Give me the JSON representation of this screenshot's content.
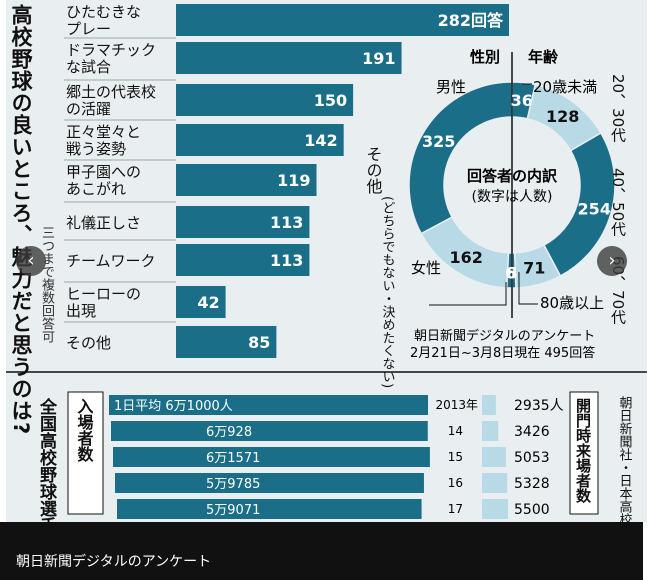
{
  "question_title": "高校野球の良いところ、魅力だと思うのは?",
  "multi_answer_note": "三つまで複数回答可",
  "chart_data": [
    {
      "type": "bar",
      "title": "高校野球の良いところ、魅力だと思うのは?",
      "categories": [
        [
          "ひたむきな",
          "プレー"
        ],
        [
          "ドラマチック",
          "な試合"
        ],
        [
          "郷土の代表校",
          "の活躍"
        ],
        [
          "正々堂々と",
          "戦う姿勢"
        ],
        [
          "甲子園への",
          "あこがれ"
        ],
        [
          "礼儀正しさ"
        ],
        [
          "チームワーク"
        ],
        [
          "ヒーローの",
          "出現"
        ],
        [
          "その他"
        ]
      ],
      "values": [
        282,
        191,
        150,
        142,
        119,
        113,
        113,
        42,
        85
      ],
      "value_labels": [
        "282回答",
        "191",
        "150",
        "142",
        "119",
        "113",
        "113",
        "42",
        "85"
      ],
      "xlim": [
        0,
        282
      ],
      "bar_color": "#1b6e87"
    },
    {
      "type": "pie",
      "donut": true,
      "center_title": "回答者の内訳",
      "center_subtitle": "(数字は人数)",
      "rings": [
        {
          "label": "性別",
          "slices": [
            {
              "name": "男性",
              "value": 325,
              "color": "#1b6e87"
            },
            {
              "name": "女性",
              "value": 162,
              "color": "#b8d9e6"
            },
            {
              "name": "その他(どちらでもない・決めたくない)",
              "value": 8,
              "color": "#1b6e87"
            }
          ]
        },
        {
          "label": "年齢",
          "slices": [
            {
              "name": "20歳未満",
              "value": 36,
              "color": "#1b6e87"
            },
            {
              "name": "20、30代",
              "value": 128,
              "color": "#b8d9e6"
            },
            {
              "name": "40、50代",
              "value": 254,
              "color": "#1b6e87"
            },
            {
              "name": "60、70代",
              "value": 71,
              "color": "#b8d9e6"
            },
            {
              "name": "80歳以上",
              "value": 6,
              "color": "#1b6e87"
            }
          ]
        }
      ],
      "labels": {
        "gender_title": "性別",
        "age_title": "年齢",
        "male": "男性",
        "female": "女性",
        "other": "その他",
        "other_note": "(どちらでもない・決めたくない)",
        "under20": "20歳未満",
        "age2030": "20、30代",
        "age4050": "40、50代",
        "age6070": "60、70代",
        "over80": "80歳以上"
      },
      "source": "朝日新聞デジタルのアンケート",
      "period": "2月21日~3月8日現在 495回答"
    },
    {
      "type": "bar",
      "title": "全国高校野球選手権大会",
      "categories": [
        "2013年",
        "14",
        "15",
        "16",
        "17"
      ],
      "series": [
        {
          "name": "入場者数",
          "values": [
            61000,
            60928,
            61571,
            59785,
            59071
          ],
          "labels": [
            "1日平均 6万1000人",
            "6万928",
            "6万1571",
            "5万9785",
            "5万9071"
          ],
          "color": "#1b6e87"
        },
        {
          "name": "開門時来場者数",
          "values": [
            2935,
            3426,
            5053,
            5328,
            5500
          ],
          "labels": [
            "2935人",
            "3426",
            "5053",
            "5328",
            "5500"
          ],
          "color": "#b8d9e6"
        }
      ],
      "attendance_axis_label": "入場者数",
      "gate_axis_label": "開門時来場者数",
      "source": "朝日新聞社・日本高校野球連盟調べ"
    }
  ],
  "caption": "朝日新聞デジタルのアンケート",
  "nav": {
    "prev": "‹",
    "next": "›"
  }
}
